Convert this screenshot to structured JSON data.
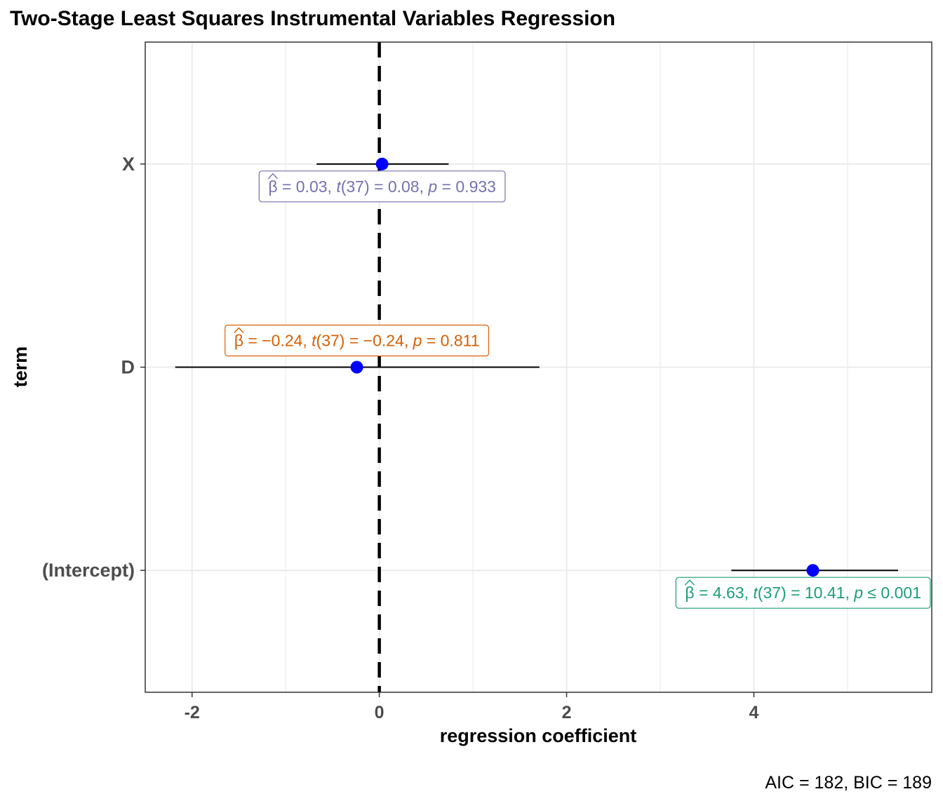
{
  "chart_data": {
    "type": "forest",
    "title": "Two-Stage Least Squares Instrumental Variables Regression",
    "xlabel": "regression coefficient",
    "ylabel": "term",
    "caption": "AIC = 182, BIC = 189",
    "xlim": [
      -2.5,
      5.9
    ],
    "x_ticks": [
      -2,
      0,
      2,
      4
    ],
    "x_tick_labels": [
      "-2",
      "0",
      "2",
      "4"
    ],
    "reference_line": 0,
    "grid": true,
    "terms": [
      {
        "term": "X",
        "estimate": 0.03,
        "conf_low": -0.67,
        "conf_high": 0.74,
        "label": {
          "beta": "0.03",
          "df": "37",
          "t": "0.08",
          "p_op": "=",
          "p": "0.933"
        },
        "label_color": "#7570b3",
        "label_side": "below"
      },
      {
        "term": "D",
        "estimate": -0.24,
        "conf_low": -2.18,
        "conf_high": 1.71,
        "label": {
          "beta": "−0.24",
          "df": "37",
          "t": "−0.24",
          "p_op": "=",
          "p": "0.811"
        },
        "label_color": "#d95f02",
        "label_side": "above"
      },
      {
        "term": "(Intercept)",
        "estimate": 4.63,
        "conf_low": 3.76,
        "conf_high": 5.54,
        "label": {
          "beta": "4.63",
          "df": "37",
          "t": "10.41",
          "p_op": "≤",
          "p": "0.001"
        },
        "label_color": "#1b9e77",
        "label_side": "below"
      }
    ],
    "point_color": "#0000ff",
    "errorbar_color": "#000000"
  }
}
